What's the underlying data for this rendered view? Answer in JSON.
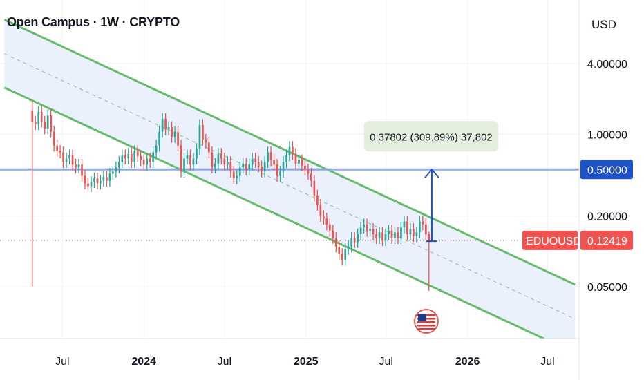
{
  "title": "Open Campus · 1W · CRYPTO",
  "currency": "USD",
  "colors": {
    "up": "#26a69a",
    "down": "#ef5350",
    "channel": "#66bb6a",
    "channel_fill": "#e8effc",
    "level": "#90a8e6",
    "level_tag": "#1e52c9",
    "price_tag": "#ef5350",
    "measure": "#1e52c9",
    "measure_label_bg": "#e3eedd"
  },
  "chart_data": {
    "type": "candlestick",
    "symbol": "EDUOUSD",
    "interval": "1W",
    "y_scale": "log",
    "y_tick_labels": [
      "4.00000",
      "1.00000",
      "0.20000",
      "0.05000"
    ],
    "y_ticks": [
      4.0,
      1.0,
      0.2,
      0.05
    ],
    "ylim": [
      0.018,
      14
    ],
    "x_tick_labels": [
      "Jul",
      "2024",
      "Jul",
      "2025",
      "Jul",
      "2026",
      "Jul"
    ],
    "x_ticks": [
      "2023-07-01",
      "2024-01-01",
      "2024-07-01",
      "2025-01-01",
      "2025-07-01",
      "2026-01-01",
      "2026-07-01"
    ],
    "xlim": [
      "2023-02-10",
      "2026-09-10"
    ],
    "first_candle": "2023-04-24",
    "candle_interval_days": 7,
    "closes": [
      1.28,
      1.22,
      1.55,
      1.28,
      1.12,
      1.45,
      1.05,
      0.8,
      0.72,
      0.7,
      0.58,
      0.62,
      0.66,
      0.55,
      0.52,
      0.55,
      0.44,
      0.38,
      0.36,
      0.39,
      0.42,
      0.38,
      0.4,
      0.43,
      0.4,
      0.46,
      0.48,
      0.52,
      0.58,
      0.66,
      0.62,
      0.68,
      0.58,
      0.72,
      0.65,
      0.6,
      0.55,
      0.62,
      0.58,
      0.7,
      0.8,
      1.05,
      1.35,
      1.1,
      1.15,
      0.95,
      1.05,
      0.8,
      0.48,
      0.62,
      0.66,
      0.55,
      0.62,
      0.75,
      1.2,
      0.9,
      0.85,
      0.7,
      0.52,
      0.56,
      0.68,
      0.62,
      0.55,
      0.58,
      0.48,
      0.42,
      0.44,
      0.52,
      0.56,
      0.5,
      0.55,
      0.62,
      0.58,
      0.53,
      0.48,
      0.58,
      0.7,
      0.6,
      0.55,
      0.44,
      0.48,
      0.58,
      0.66,
      0.78,
      0.68,
      0.56,
      0.6,
      0.54,
      0.5,
      0.46,
      0.4,
      0.3,
      0.25,
      0.2,
      0.19,
      0.17,
      0.15,
      0.13,
      0.11,
      0.095,
      0.085,
      0.105,
      0.11,
      0.13,
      0.12,
      0.14,
      0.16,
      0.17,
      0.15,
      0.155,
      0.14,
      0.13,
      0.145,
      0.125,
      0.14,
      0.15,
      0.13,
      0.145,
      0.13,
      0.16,
      0.18,
      0.14,
      0.155,
      0.135,
      0.145,
      0.18,
      0.17,
      0.14,
      0.12419
    ],
    "series": [
      {
        "name": "EDUOUSD",
        "last": 0.12419,
        "last_label": "0.12419"
      }
    ],
    "horizontal_level": {
      "value": 0.5,
      "label": "0.50000"
    },
    "channel": {
      "anchor_a_date": "2023-02-20",
      "anchor_b_date": "2026-09-01",
      "upper": [
        9.5,
        0.052
      ],
      "lower": [
        2.5,
        0.0135
      ]
    },
    "measure": {
      "date": "2025-09-30",
      "from": 0.122,
      "to": 0.5,
      "label": "0.37802 (309.89%) 37,802"
    },
    "event_flag": {
      "date": "2025-09-30",
      "icon": "us-flag-icon"
    }
  }
}
